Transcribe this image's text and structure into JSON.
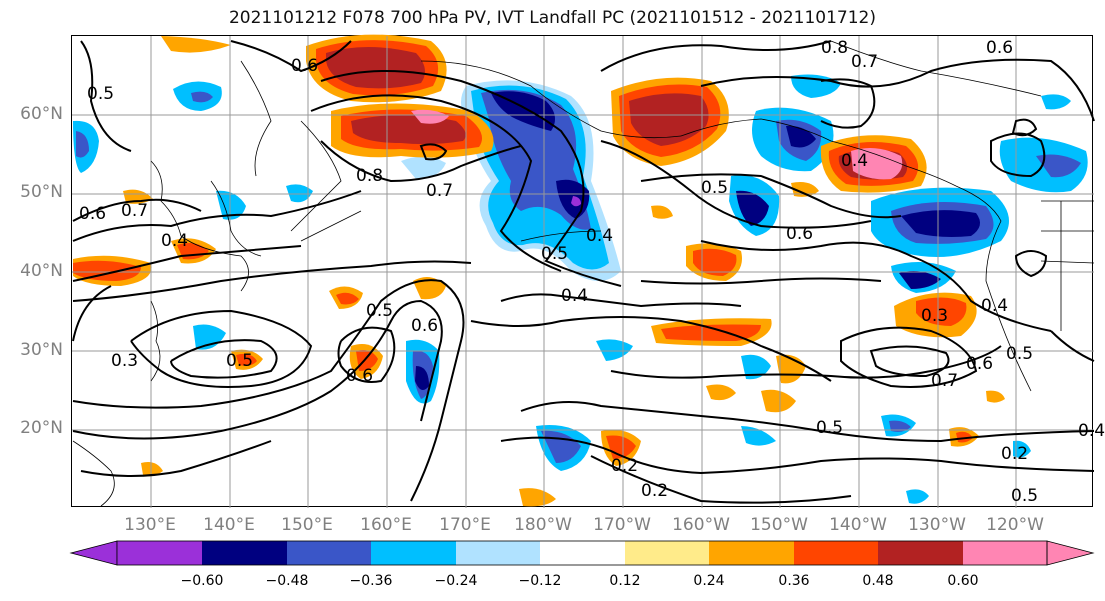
{
  "title": "2021101212 F078 700 hPa PV, IVT Landfall PC (2021101512 - 2021101712)",
  "lat_labels": [
    "60°N",
    "50°N",
    "40°N",
    "30°N",
    "20°N"
  ],
  "lon_labels": [
    "130°E",
    "140°E",
    "150°E",
    "160°E",
    "170°E",
    "180°W",
    "170°W",
    "160°W",
    "150°W",
    "140°W",
    "130°W",
    "120°W"
  ],
  "colorbar": {
    "ticks": [
      "−0.60",
      "−0.48",
      "−0.36",
      "−0.24",
      "−0.12",
      "0.12",
      "0.24",
      "0.36",
      "0.48",
      "0.60"
    ],
    "colors": [
      "#9b30d9",
      "#000080",
      "#3a56c8",
      "#00bfff",
      "#b0e2ff",
      "#ffffff",
      "#ffeb8a",
      "#ffa500",
      "#ff4500",
      "#b22222",
      "#ff85b3"
    ]
  },
  "contour_labels": [
    "0.6",
    "0.8",
    "0.7",
    "0.6",
    "0.5",
    "0.5",
    "0.6",
    "0.7",
    "0.8",
    "0.7",
    "0.4",
    "0.5",
    "0.4",
    "0.6",
    "0.4",
    "0.5",
    "0.4",
    "0.5",
    "0.6",
    "0.6",
    "0.3",
    "0.5",
    "0.3",
    "0.4",
    "0.6",
    "0.7",
    "0.5",
    "0.5",
    "0.2",
    "0.2",
    "0.2",
    "0.4"
  ]
}
